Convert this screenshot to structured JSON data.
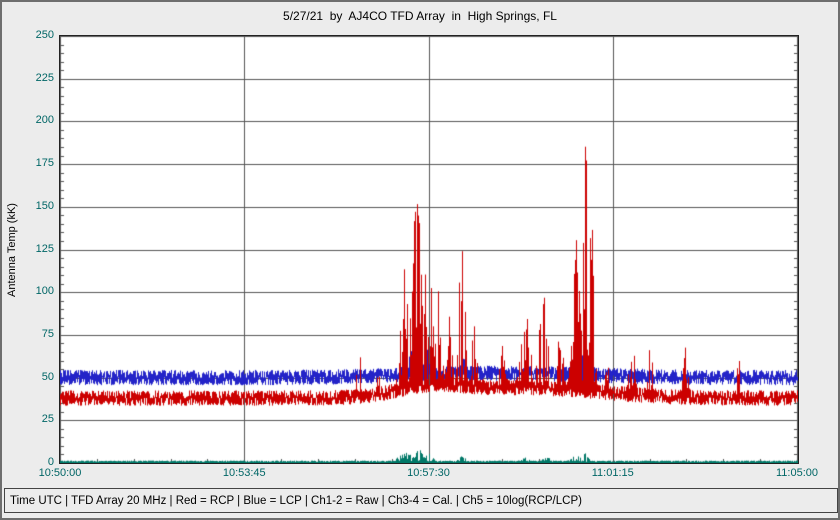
{
  "window": {
    "app": "Radio-SkyPipe strip chart"
  },
  "status_bar": {
    "text": "Time UTC | TFD Array 20 MHz | Red = RCP | Blue = LCP | Ch1-2 = Raw | Ch3-4 = Cal. | Ch5 = 10log(RCP/LCP)"
  },
  "chart_data": {
    "type": "line",
    "title": "5/27/21  by  AJ4CO TFD Array  in  High Springs, FL",
    "xlabel": "Time UTC",
    "ylabel": "Antenna Temp (kK)",
    "units": "kK",
    "duration_seconds": 900,
    "x_ticks": [
      "10:50:00",
      "10:53:45",
      "10:57:30",
      "11:01:15",
      "11:05:00"
    ],
    "x_minor_per_major": 5,
    "ylim": [
      0,
      250
    ],
    "y_ticks": [
      0,
      25,
      50,
      75,
      100,
      125,
      150,
      175,
      200,
      225,
      250
    ],
    "y_minor_step": 5,
    "grid": true,
    "legend_position": "none",
    "colors": {
      "grid": "#555555",
      "plot_bg": "#ffffff",
      "tick_label": "#006666"
    },
    "note": "Noisy time-series: each series is a dense noise band (baseline +/- noise, kK) with burst spikes; t = fraction of the 15-min span, w = gaussian width fraction, amp = peak kK above baseline. Draw order = array order.",
    "series": [
      {
        "name": "LCP",
        "channel": "Ch2 (Raw) / Ch4 (Cal.)",
        "color": "#2323c8",
        "baseline": 50,
        "noise": 4.5,
        "lift": [
          {
            "t": 0.6,
            "w": 0.12,
            "amp": 2.5
          }
        ],
        "bursts": [
          {
            "t": 0.468,
            "w": 0.006,
            "amp": 12
          },
          {
            "t": 0.483,
            "w": 0.008,
            "amp": 22
          },
          {
            "t": 0.498,
            "w": 0.005,
            "amp": 15
          },
          {
            "t": 0.545,
            "w": 0.004,
            "amp": 14
          },
          {
            "t": 0.655,
            "w": 0.006,
            "amp": 10
          },
          {
            "t": 0.7,
            "w": 0.005,
            "amp": 15
          },
          {
            "t": 0.7115,
            "w": 0.0035,
            "amp": 22
          },
          {
            "t": 0.721,
            "w": 0.003,
            "amp": 12
          }
        ]
      },
      {
        "name": "RCP",
        "channel": "Ch1 (Raw) / Ch3 (Cal.)",
        "color": "#cc0000",
        "baseline": 38,
        "noise": 4.5,
        "lift": [
          {
            "t": 0.5,
            "w": 0.045,
            "amp": 5
          },
          {
            "t": 0.63,
            "w": 0.1,
            "amp": 6
          }
        ],
        "bursts": [
          {
            "t": 0.405,
            "w": 0.0025,
            "amp": 38
          },
          {
            "t": 0.432,
            "w": 0.002,
            "amp": 22
          },
          {
            "t": 0.468,
            "w": 0.006,
            "amp": 72
          },
          {
            "t": 0.483,
            "w": 0.008,
            "amp": 117
          },
          {
            "t": 0.498,
            "w": 0.006,
            "amp": 95
          },
          {
            "t": 0.513,
            "w": 0.004,
            "amp": 70
          },
          {
            "t": 0.528,
            "w": 0.003,
            "amp": 55
          },
          {
            "t": 0.545,
            "w": 0.0035,
            "amp": 118
          },
          {
            "t": 0.562,
            "w": 0.003,
            "amp": 45
          },
          {
            "t": 0.6,
            "w": 0.004,
            "amp": 25
          },
          {
            "t": 0.632,
            "w": 0.007,
            "amp": 42
          },
          {
            "t": 0.655,
            "w": 0.006,
            "amp": 58
          },
          {
            "t": 0.678,
            "w": 0.004,
            "amp": 40
          },
          {
            "t": 0.7,
            "w": 0.005,
            "amp": 95
          },
          {
            "t": 0.7115,
            "w": 0.0035,
            "amp": 167
          },
          {
            "t": 0.721,
            "w": 0.003,
            "amp": 120
          },
          {
            "t": 0.742,
            "w": 0.003,
            "amp": 30
          },
          {
            "t": 0.775,
            "w": 0.005,
            "amp": 33
          },
          {
            "t": 0.8,
            "w": 0.004,
            "amp": 28
          },
          {
            "t": 0.848,
            "w": 0.003,
            "amp": 30
          },
          {
            "t": 0.92,
            "w": 0.0025,
            "amp": 25
          }
        ]
      },
      {
        "name": "10log(RCP/LCP)",
        "channel": "Ch5",
        "color": "#007868",
        "baseline": 0.7,
        "noise": 0.7,
        "fill_to_zero": true,
        "lift": [],
        "bursts": [
          {
            "t": 0.468,
            "w": 0.008,
            "amp": 6
          },
          {
            "t": 0.487,
            "w": 0.006,
            "amp": 7
          },
          {
            "t": 0.5,
            "w": 0.005,
            "amp": 5
          },
          {
            "t": 0.545,
            "w": 0.004,
            "amp": 4
          },
          {
            "t": 0.63,
            "w": 0.006,
            "amp": 2.5
          },
          {
            "t": 0.66,
            "w": 0.005,
            "amp": 3
          },
          {
            "t": 0.7,
            "w": 0.006,
            "amp": 4.5
          },
          {
            "t": 0.712,
            "w": 0.004,
            "amp": 5
          }
        ]
      }
    ]
  }
}
